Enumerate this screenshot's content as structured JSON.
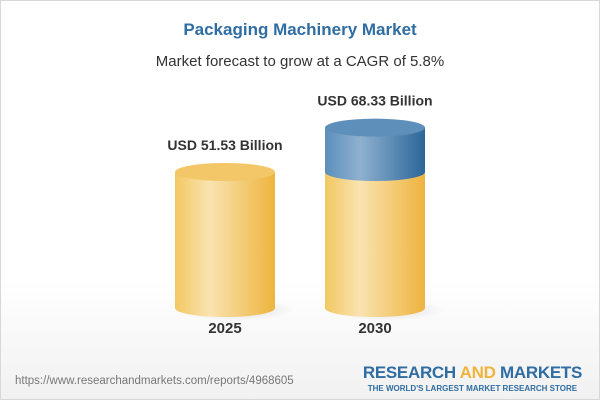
{
  "header": {
    "title": "Packaging Machinery Market",
    "subtitle": "Market forecast to grow at a CAGR of 5.8%"
  },
  "chart_data": {
    "type": "bar",
    "style": "3d-cylinder",
    "title": "Packaging Machinery Market",
    "subtitle": "Market forecast to grow at a CAGR of 5.8%",
    "categories": [
      "2025",
      "2030"
    ],
    "values": [
      51.53,
      68.33
    ],
    "data_labels": [
      "USD 51.53 Billion",
      "USD 68.33 Billion"
    ],
    "unit": "USD Billion",
    "grid": false,
    "colors": {
      "base": "#f2c055",
      "growth": "#3d77a8"
    }
  },
  "footer": {
    "url": "https://www.researchandmarkets.com/reports/4968605",
    "logo_part1": "RESEARCH ",
    "logo_part2": "AND",
    "logo_part3": " MARKETS",
    "tagline": "THE WORLD'S LARGEST MARKET RESEARCH STORE"
  }
}
